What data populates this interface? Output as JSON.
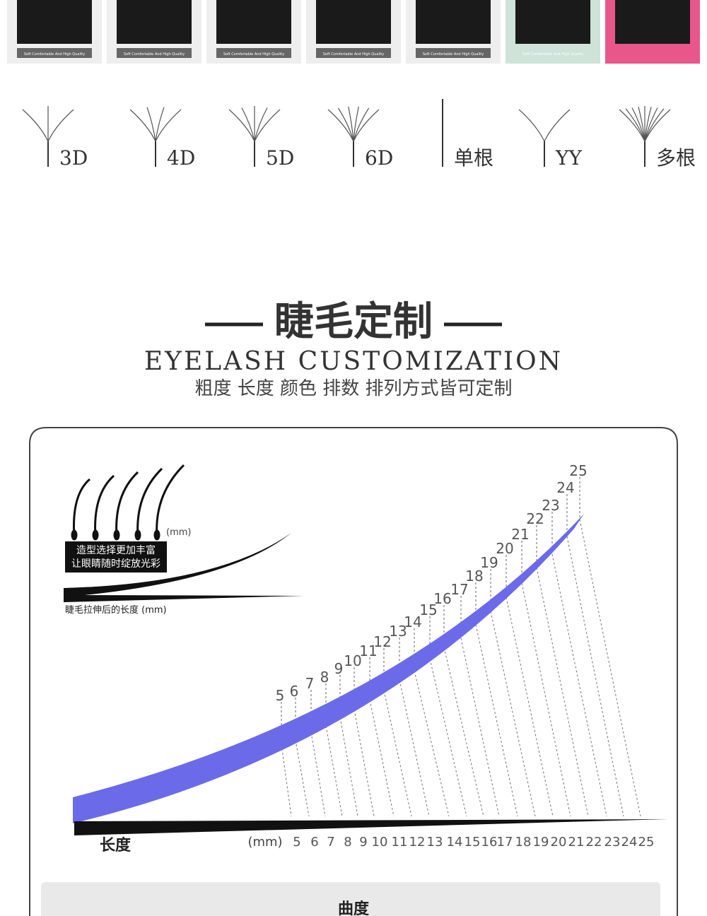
{
  "products": {
    "caption": "Soft Comfortable And High Quality"
  },
  "lash_types": [
    "3D",
    "4D",
    "5D",
    "6D",
    "单根",
    "YY",
    "多根"
  ],
  "section": {
    "title": "睫毛定制",
    "subtitle_en": "EYELASH CUSTOMIZATION",
    "subtitle_cn": "粗度 长度 颜色 排数 排列方式皆可定制"
  },
  "length_chart": {
    "unit": "(mm)",
    "slogan": [
      "造型选择更加丰富",
      "让眼睛随时绽放光彩"
    ],
    "stretch_caption": "睫毛拉伸后的长度 (mm)",
    "axis_label": "长度",
    "lengths": [
      5,
      6,
      7,
      8,
      9,
      10,
      11,
      12,
      13,
      14,
      15,
      16,
      17,
      18,
      19,
      20,
      21,
      22,
      23,
      24,
      25
    ]
  },
  "next_section": {
    "title": "曲度"
  }
}
